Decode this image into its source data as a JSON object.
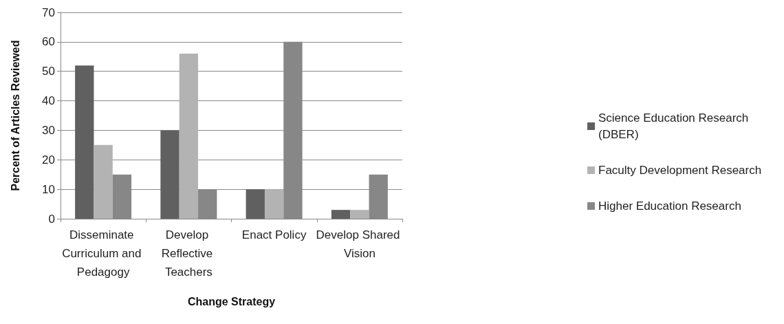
{
  "chart_data": {
    "type": "bar",
    "xlabel": "Change Strategy",
    "ylabel": "Percent of Articles Reviewed",
    "categories": [
      "Disseminate Curriculum and Pedagogy",
      "Develop Reflective Teachers",
      "Enact Policy",
      "Develop Shared Vision"
    ],
    "series": [
      {
        "name": "Science Education Research (DBER)",
        "color": "#606060",
        "values": [
          52,
          30,
          10,
          3
        ]
      },
      {
        "name": "Faculty Development Research",
        "color": "#b3b3b3",
        "values": [
          25,
          56,
          10,
          3
        ]
      },
      {
        "name": "Higher Education Research",
        "color": "#878787",
        "values": [
          15,
          10,
          60,
          15
        ]
      }
    ],
    "ylim": [
      0,
      70
    ],
    "yticks": [
      0,
      10,
      20,
      30,
      40,
      50,
      60,
      70
    ],
    "grid": "y",
    "legend": "right"
  }
}
